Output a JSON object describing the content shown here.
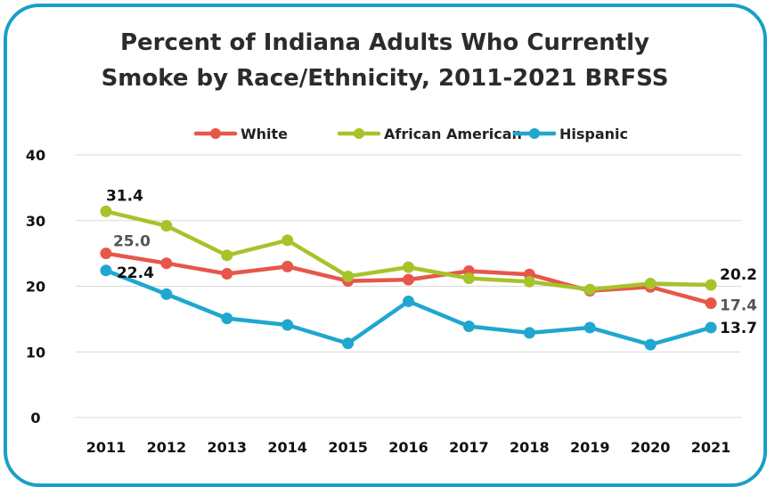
{
  "chart_data": {
    "type": "line",
    "title_line1": "Percent of Indiana Adults Who Currently",
    "title_line2": "Smoke by Race/Ethnicity, 2011-2021 BRFSS",
    "categories": [
      "2011",
      "2012",
      "2013",
      "2014",
      "2015",
      "2016",
      "2017",
      "2018",
      "2019",
      "2020",
      "2021"
    ],
    "series": [
      {
        "name": "White",
        "color": "#e8564a",
        "values": [
          25.0,
          23.5,
          21.9,
          23.0,
          20.8,
          21.0,
          22.3,
          21.8,
          19.3,
          19.9,
          17.4
        ]
      },
      {
        "name": "African American",
        "color": "#a6c329",
        "values": [
          31.4,
          29.2,
          24.7,
          27.0,
          21.5,
          22.9,
          21.2,
          20.7,
          19.5,
          20.4,
          20.2
        ]
      },
      {
        "name": "Hispanic",
        "color": "#1fa7cf",
        "values": [
          22.4,
          18.8,
          15.1,
          14.1,
          11.3,
          17.7,
          13.9,
          12.9,
          13.7,
          11.1,
          13.7
        ]
      }
    ],
    "ylim": [
      0,
      40
    ],
    "yticks": [
      "0",
      "10",
      "20",
      "30",
      "40"
    ],
    "grid": true,
    "legend": "top",
    "data_labels": [
      {
        "series": 1,
        "index": 0,
        "text": "31.4"
      },
      {
        "series": 0,
        "index": 0,
        "text": "25.0"
      },
      {
        "series": 2,
        "index": 0,
        "text": "22.4"
      },
      {
        "series": 1,
        "index": 10,
        "text": "20.2"
      },
      {
        "series": 0,
        "index": 10,
        "text": "17.4"
      },
      {
        "series": 2,
        "index": 10,
        "text": "13.7"
      }
    ]
  }
}
